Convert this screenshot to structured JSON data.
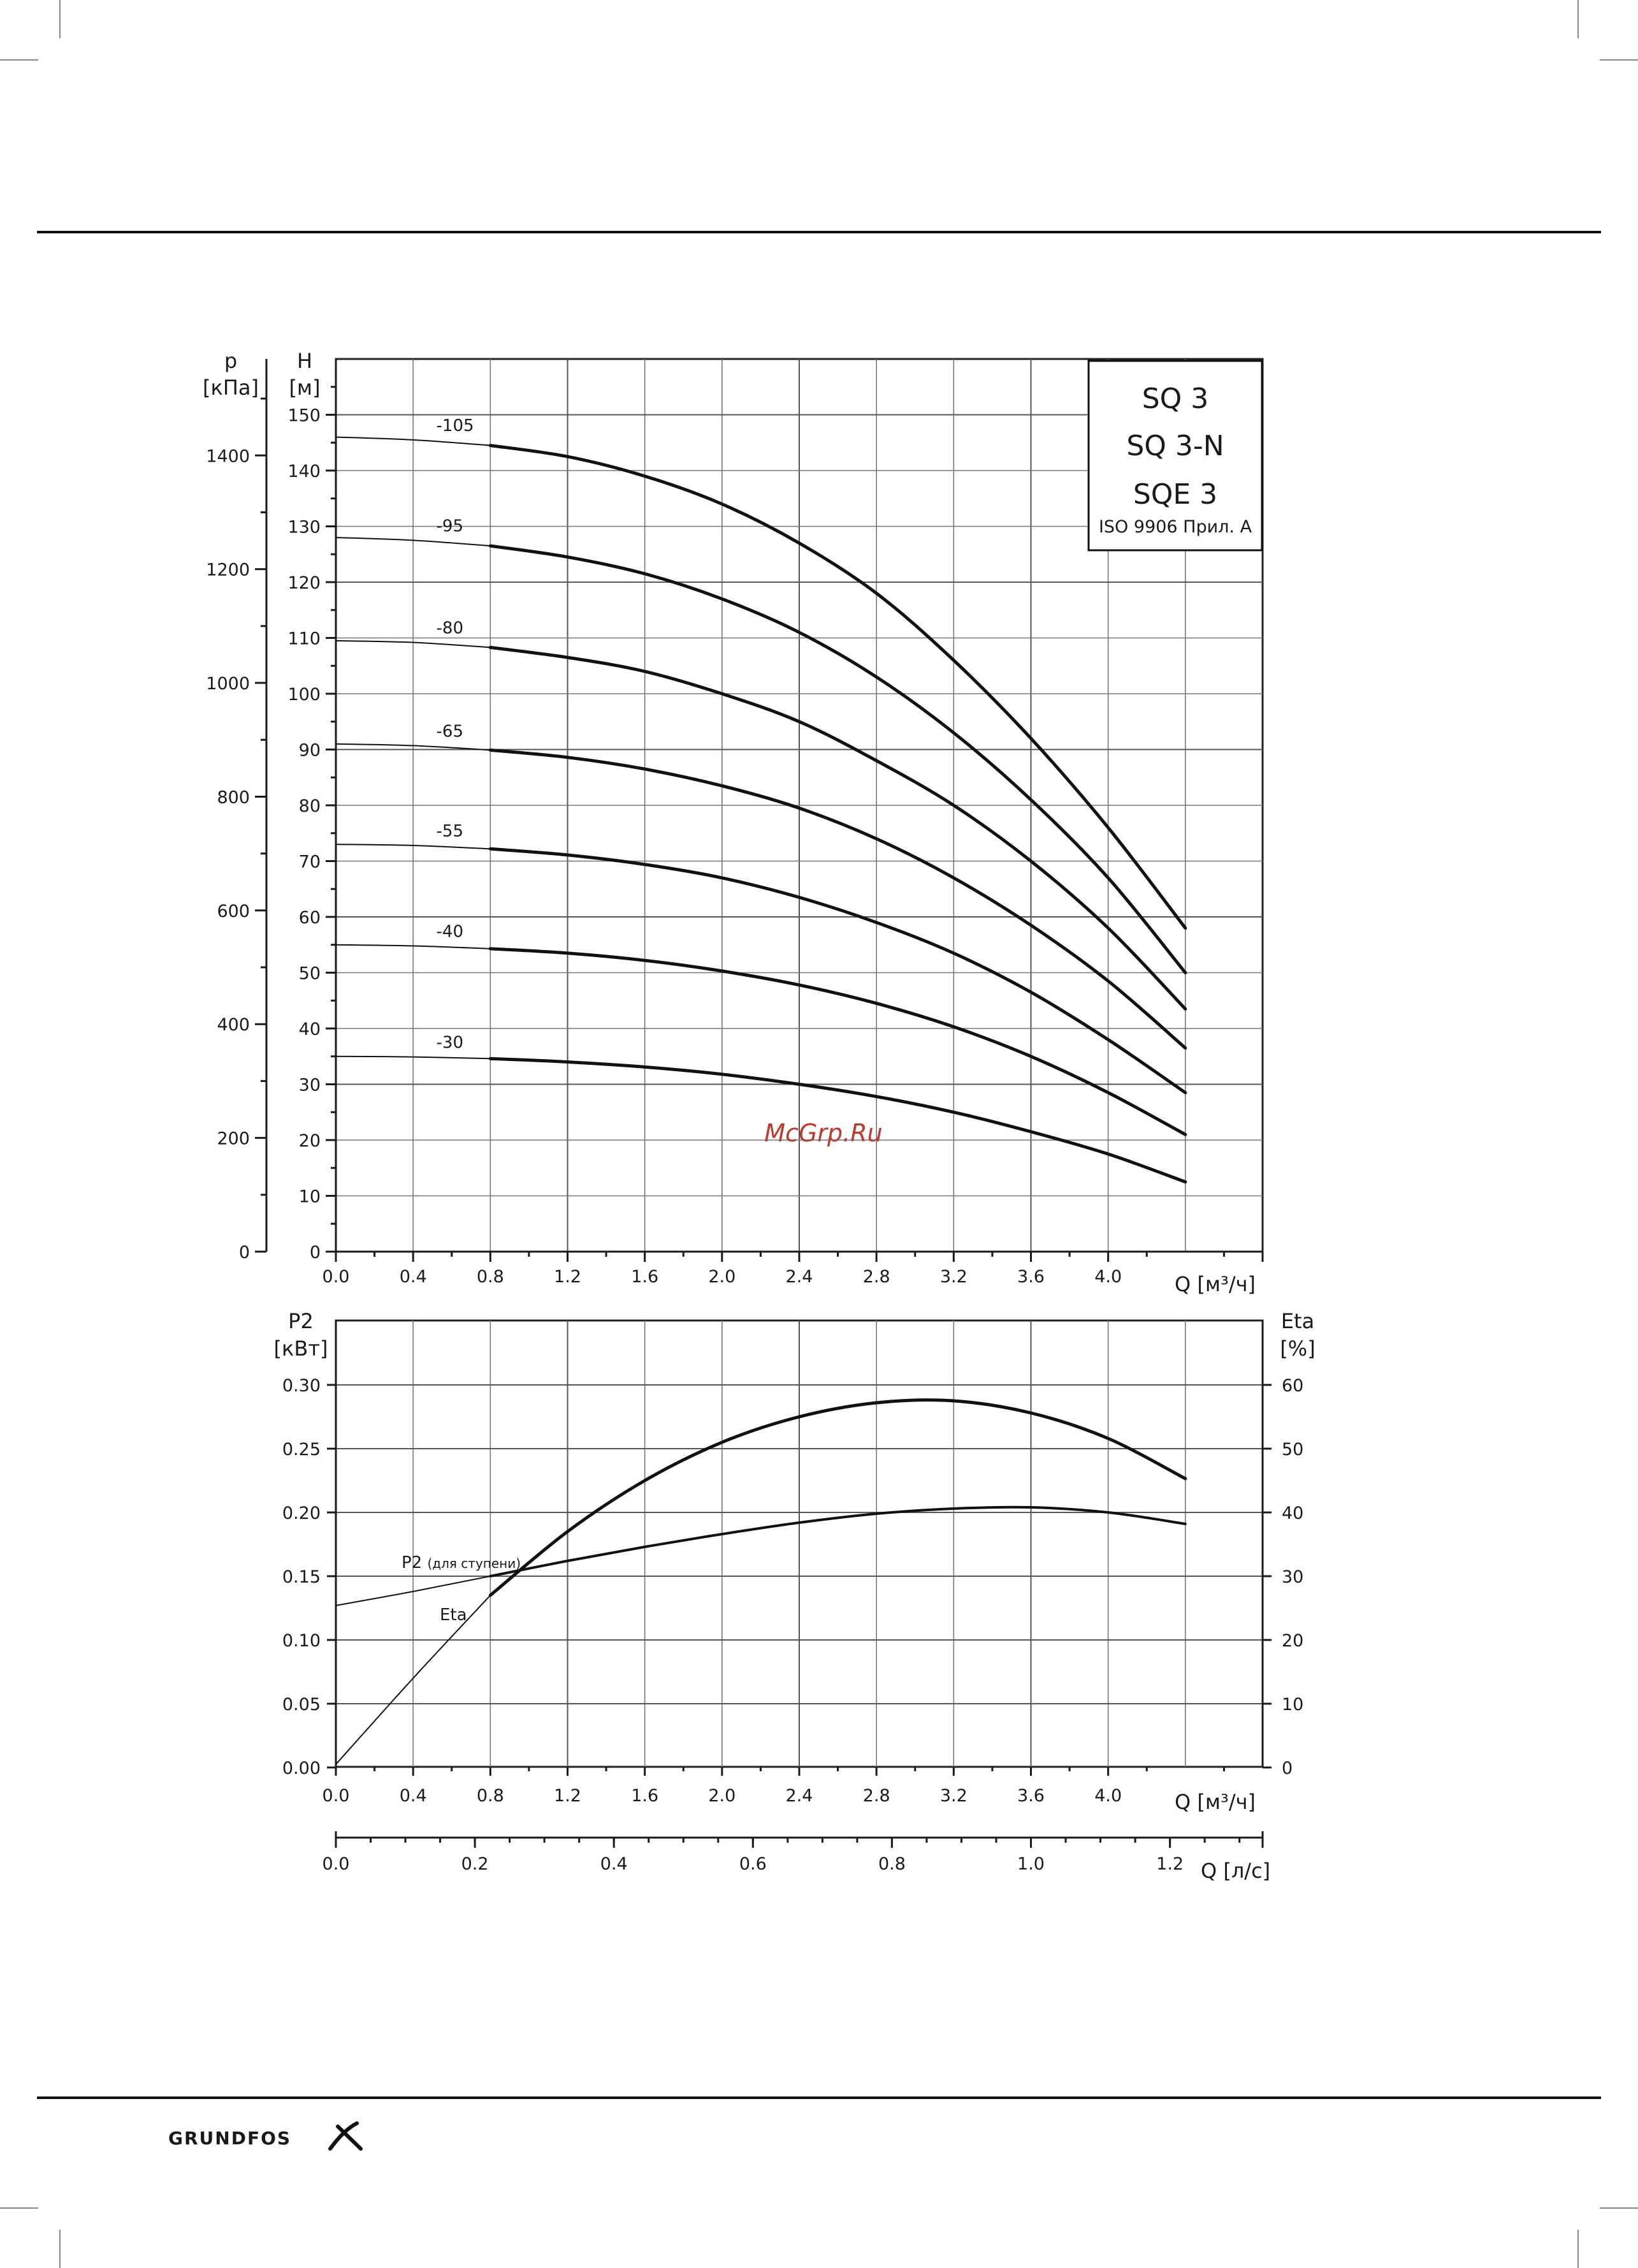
{
  "legend": {
    "models": [
      "SQ 3",
      "SQ 3-N",
      "SQE 3"
    ],
    "standard": "ISO 9906 Прил. A"
  },
  "watermark": "McGrp.Ru",
  "brand": "GRUNDFOS",
  "colors": {
    "curve": "#111111",
    "grid": "#555555",
    "watermark": "#c0392b"
  },
  "chart_data": [
    {
      "type": "line",
      "x_label": "Q [м³/ч]",
      "y_label": "H\n[м]",
      "y2_label": "p\n[кПа]",
      "x_ticks": [
        "0.0",
        "0.4",
        "0.8",
        "1.2",
        "1.6",
        "2.0",
        "2.4",
        "2.8",
        "3.2",
        "3.6",
        "4.0"
      ],
      "y_ticks": [
        "0",
        "10",
        "20",
        "30",
        "40",
        "50",
        "60",
        "70",
        "80",
        "90",
        "100",
        "110",
        "120",
        "130",
        "140",
        "150"
      ],
      "y2_ticks": [
        "0",
        "200",
        "400",
        "600",
        "800",
        "1000",
        "1200",
        "1400"
      ],
      "xlim": [
        0,
        4.8
      ],
      "ylim": [
        0,
        160
      ],
      "grid": true,
      "series": [
        {
          "name": "-105",
          "x": [
            0,
            0.4,
            0.8,
            1.2,
            1.6,
            2.0,
            2.4,
            2.8,
            3.2,
            3.6,
            4.0,
            4.4
          ],
          "y": [
            146,
            145.5,
            144.5,
            142.5,
            139,
            134,
            127,
            118,
            106,
            92,
            76,
            58
          ]
        },
        {
          "name": "-95",
          "x": [
            0,
            0.4,
            0.8,
            1.2,
            1.6,
            2.0,
            2.4,
            2.8,
            3.2,
            3.6,
            4.0,
            4.4
          ],
          "y": [
            128,
            127.5,
            126.5,
            124.5,
            121.5,
            117,
            111,
            103,
            93,
            81,
            67,
            50
          ]
        },
        {
          "name": "-80",
          "x": [
            0,
            0.4,
            0.8,
            1.2,
            1.6,
            2.0,
            2.4,
            2.8,
            3.2,
            3.6,
            4.0,
            4.4
          ],
          "y": [
            109.5,
            109.2,
            108.3,
            106.5,
            104,
            100,
            95,
            88,
            80,
            70,
            58,
            43.5
          ]
        },
        {
          "name": "-65",
          "x": [
            0,
            0.4,
            0.8,
            1.2,
            1.6,
            2.0,
            2.4,
            2.8,
            3.2,
            3.6,
            4.0,
            4.4
          ],
          "y": [
            91,
            90.7,
            89.9,
            88.6,
            86.5,
            83.5,
            79.5,
            74,
            67,
            58.5,
            48.5,
            36.5
          ]
        },
        {
          "name": "-55",
          "x": [
            0,
            0.4,
            0.8,
            1.2,
            1.6,
            2.0,
            2.4,
            2.8,
            3.2,
            3.6,
            4.0,
            4.4
          ],
          "y": [
            73,
            72.8,
            72.2,
            71.1,
            69.4,
            67,
            63.5,
            59,
            53.5,
            46.5,
            38,
            28.5
          ]
        },
        {
          "name": "-40",
          "x": [
            0,
            0.4,
            0.8,
            1.2,
            1.6,
            2.0,
            2.4,
            2.8,
            3.2,
            3.6,
            4.0,
            4.4
          ],
          "y": [
            55,
            54.8,
            54.3,
            53.5,
            52.2,
            50.3,
            47.8,
            44.5,
            40.3,
            35,
            28.5,
            21
          ]
        },
        {
          "name": "-30",
          "x": [
            0,
            0.4,
            0.8,
            1.2,
            1.6,
            2.0,
            2.4,
            2.8,
            3.2,
            3.6,
            4.0,
            4.4
          ],
          "y": [
            35,
            34.9,
            34.6,
            34,
            33.1,
            31.8,
            30,
            27.8,
            25,
            21.5,
            17.5,
            12.5
          ]
        }
      ]
    },
    {
      "type": "line",
      "x_label": "Q [м³/ч]",
      "y_label": "P2\n[кВт]",
      "y2_label": "Eta\n[%]",
      "x_ticks": [
        "0.0",
        "0.4",
        "0.8",
        "1.2",
        "1.6",
        "2.0",
        "2.4",
        "2.8",
        "3.2",
        "3.6",
        "4.0"
      ],
      "y_ticks": [
        "0.00",
        "0.05",
        "0.10",
        "0.15",
        "0.20",
        "0.25",
        "0.30"
      ],
      "y2_ticks": [
        "0",
        "10",
        "20",
        "30",
        "40",
        "50",
        "60"
      ],
      "xlim": [
        0,
        4.8
      ],
      "ylim": [
        0,
        0.3
      ],
      "y2lim": [
        0,
        60
      ],
      "grid": true,
      "series": [
        {
          "name": "P2 (для ступени)",
          "axis": "left",
          "x": [
            0,
            0.4,
            0.8,
            1.2,
            1.6,
            2.0,
            2.4,
            2.8,
            3.2,
            3.6,
            4.0,
            4.4
          ],
          "y": [
            0.127,
            0.138,
            0.15,
            0.162,
            0.173,
            0.183,
            0.192,
            0.199,
            0.203,
            0.204,
            0.2,
            0.191
          ]
        },
        {
          "name": "Eta",
          "axis": "right",
          "x": [
            0,
            0.4,
            0.8,
            1.2,
            1.6,
            2.0,
            2.4,
            2.8,
            3.2,
            3.6,
            4.0,
            4.4
          ],
          "y": [
            0.5,
            14,
            27,
            37,
            45,
            51,
            55,
            57.2,
            57.5,
            55.6,
            51.6,
            45.3
          ]
        }
      ]
    },
    {
      "type": "axis",
      "x_label": "Q [л/с]",
      "x_ticks": [
        "0.0",
        "0.2",
        "0.4",
        "0.6",
        "0.8",
        "1.0",
        "1.2"
      ],
      "xlim": [
        0,
        1.333
      ]
    }
  ]
}
